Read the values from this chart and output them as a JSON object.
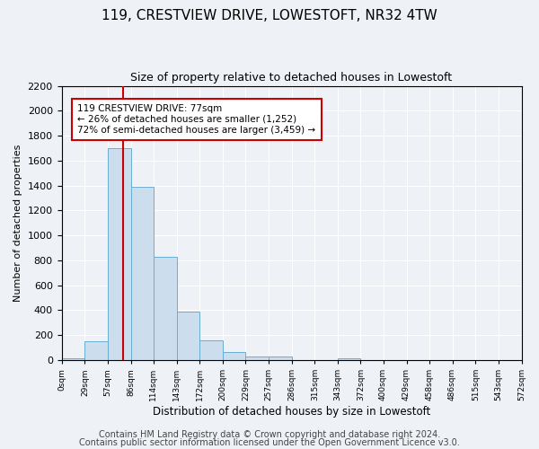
{
  "title": "119, CRESTVIEW DRIVE, LOWESTOFT, NR32 4TW",
  "subtitle": "Size of property relative to detached houses in Lowestoft",
  "xlabel": "Distribution of detached houses by size in Lowestoft",
  "ylabel": "Number of detached properties",
  "bar_color": "#ccdded",
  "bar_edge_color": "#6aadd5",
  "bin_edges": [
    0,
    29,
    57,
    86,
    114,
    143,
    172,
    200,
    229,
    257,
    286,
    315,
    343,
    372,
    400,
    429,
    458,
    486,
    515,
    543,
    572
  ],
  "bar_heights": [
    15,
    155,
    1700,
    1390,
    830,
    390,
    160,
    65,
    30,
    30,
    0,
    0,
    15,
    0,
    0,
    0,
    0,
    0,
    0,
    0
  ],
  "tick_labels": [
    "0sqm",
    "29sqm",
    "57sqm",
    "86sqm",
    "114sqm",
    "143sqm",
    "172sqm",
    "200sqm",
    "229sqm",
    "257sqm",
    "286sqm",
    "315sqm",
    "343sqm",
    "372sqm",
    "400sqm",
    "429sqm",
    "458sqm",
    "486sqm",
    "515sqm",
    "543sqm",
    "572sqm"
  ],
  "vline_x": 77,
  "vline_color": "#cc0000",
  "annotation_title": "119 CRESTVIEW DRIVE: 77sqm",
  "annotation_line1": "← 26% of detached houses are smaller (1,252)",
  "annotation_line2": "72% of semi-detached houses are larger (3,459) →",
  "annotation_box_color": "#ffffff",
  "annotation_box_edge": "#cc0000",
  "footer1": "Contains HM Land Registry data © Crown copyright and database right 2024.",
  "footer2": "Contains public sector information licensed under the Open Government Licence v3.0.",
  "ylim": [
    0,
    2200
  ],
  "yticks": [
    0,
    200,
    400,
    600,
    800,
    1000,
    1200,
    1400,
    1600,
    1800,
    2000,
    2200
  ],
  "background_color": "#eef2f7",
  "plot_background": "#eef2f7",
  "grid_color": "#ffffff",
  "title_fontsize": 11,
  "subtitle_fontsize": 9,
  "footer_fontsize": 7
}
